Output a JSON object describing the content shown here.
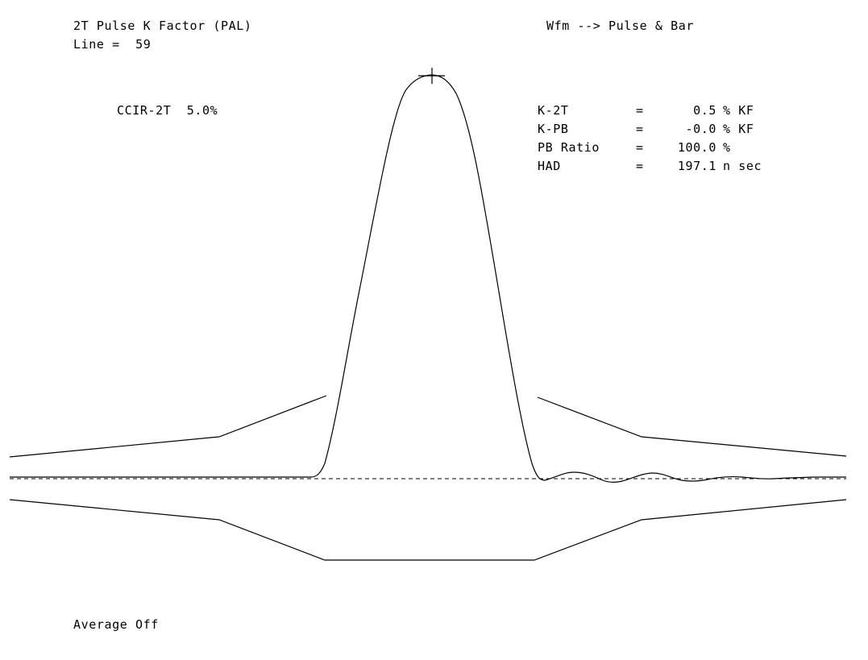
{
  "header": {
    "title": "2T Pulse K Factor (PAL)",
    "line_label": "Line =",
    "line_value": "59",
    "mode": "Wfm --> Pulse & Bar"
  },
  "graticule": {
    "name": "CCIR-2T",
    "tolerance": "5.0%"
  },
  "measurements": [
    {
      "label": "K-2T",
      "eq": "=",
      "value": "0.5",
      "unit": "% KF"
    },
    {
      "label": "K-PB",
      "eq": "=",
      "value": "-0.0",
      "unit": "% KF"
    },
    {
      "label": "PB Ratio",
      "eq": "=",
      "value": "100.0",
      "unit": "%"
    },
    {
      "label": "HAD",
      "eq": "=",
      "value": "197.1",
      "unit": "n sec"
    }
  ],
  "footer": {
    "average": "Average Off"
  },
  "colors": {
    "background": "#ffffff",
    "trace": "#000000"
  }
}
